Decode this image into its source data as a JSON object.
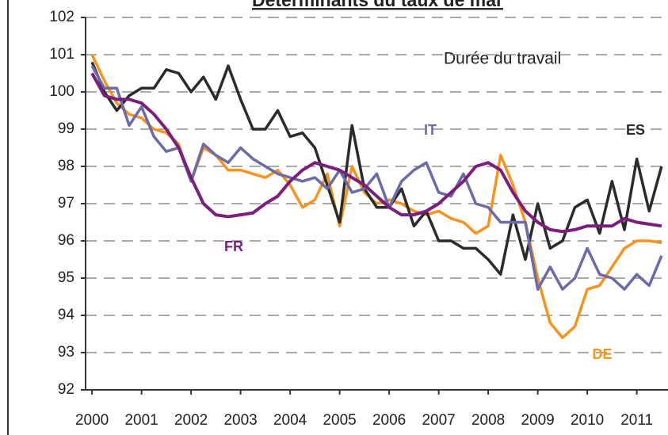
{
  "chart_data": {
    "type": "line",
    "title": "Déterminants du taux de mar",
    "annotations": [
      "Durée du travail"
    ],
    "x": [
      2000,
      2000.25,
      2000.5,
      2000.75,
      2001,
      2001.25,
      2001.5,
      2001.75,
      2002,
      2002.25,
      2002.5,
      2002.75,
      2003,
      2003.25,
      2003.5,
      2003.75,
      2004,
      2004.25,
      2004.5,
      2004.75,
      2005,
      2005.25,
      2005.5,
      2005.75,
      2006,
      2006.25,
      2006.5,
      2006.75,
      2007,
      2007.25,
      2007.5,
      2007.75,
      2008,
      2008.25,
      2008.5,
      2008.75,
      2009,
      2009.25,
      2009.5,
      2009.75,
      2010,
      2010.25,
      2010.5,
      2010.75,
      2011,
      2011.25,
      2011.5
    ],
    "xlim": [
      1999.87,
      2011.63
    ],
    "xticks": [
      2000,
      2001,
      2002,
      2003,
      2004,
      2005,
      2006,
      2007,
      2008,
      2009,
      2010,
      2011
    ],
    "ylim": [
      92,
      102
    ],
    "yticks": [
      92,
      93,
      94,
      95,
      96,
      97,
      98,
      99,
      100,
      101,
      102
    ],
    "grid": true,
    "series": [
      {
        "name": "DE",
        "color": "#f7941d",
        "values": [
          101.0,
          100.3,
          99.7,
          99.4,
          99.3,
          99.0,
          98.9,
          98.6,
          97.6,
          98.5,
          98.3,
          97.9,
          97.9,
          97.8,
          97.7,
          97.9,
          97.5,
          96.9,
          97.1,
          97.8,
          96.4,
          98.0,
          97.3,
          97.0,
          97.1,
          97.0,
          96.8,
          96.7,
          96.8,
          96.6,
          96.5,
          96.2,
          96.4,
          98.3,
          97.5,
          96.5,
          95.0,
          93.8,
          93.4,
          93.7,
          94.7,
          94.8,
          95.3,
          95.8,
          96.0,
          96.0,
          95.95
        ]
      },
      {
        "name": "ES",
        "color": "#2b2b2b",
        "values": [
          100.8,
          100.0,
          99.5,
          99.9,
          100.1,
          100.1,
          100.6,
          100.5,
          100.0,
          100.4,
          99.8,
          100.7,
          99.8,
          99.0,
          99.0,
          99.5,
          98.8,
          98.9,
          98.5,
          97.5,
          96.5,
          99.1,
          97.4,
          96.9,
          96.9,
          97.4,
          96.4,
          96.8,
          96.0,
          96.0,
          95.8,
          95.8,
          95.5,
          95.1,
          96.7,
          95.5,
          97.0,
          95.8,
          96.0,
          96.9,
          97.1,
          96.2,
          97.6,
          96.3,
          98.2,
          96.8,
          98.0
        ]
      },
      {
        "name": "IT",
        "color": "#6b6ba8",
        "values": [
          100.7,
          100.1,
          100.1,
          99.1,
          99.6,
          98.8,
          98.4,
          98.5,
          97.6,
          98.6,
          98.3,
          98.1,
          98.5,
          98.2,
          98.0,
          97.8,
          97.7,
          97.6,
          97.7,
          97.4,
          97.9,
          97.3,
          97.4,
          97.8,
          96.9,
          97.6,
          97.9,
          98.1,
          97.3,
          97.2,
          97.8,
          97.0,
          96.9,
          96.5,
          96.5,
          96.5,
          94.7,
          95.3,
          94.7,
          95.0,
          95.8,
          95.1,
          95.0,
          94.7,
          95.1,
          94.8,
          95.6
        ]
      },
      {
        "name": "FR",
        "color": "#7b1f7e",
        "values": [
          100.5,
          99.9,
          99.8,
          99.8,
          99.7,
          99.4,
          99.0,
          98.5,
          97.7,
          97.0,
          96.7,
          96.65,
          96.7,
          96.75,
          97.0,
          97.2,
          97.6,
          97.9,
          98.1,
          98.0,
          97.9,
          97.7,
          97.5,
          97.2,
          96.9,
          96.7,
          96.7,
          96.8,
          97.0,
          97.3,
          97.6,
          98.0,
          98.1,
          97.9,
          97.3,
          96.8,
          96.5,
          96.3,
          96.25,
          96.3,
          96.4,
          96.4,
          96.4,
          96.6,
          96.5,
          96.45,
          96.4
        ]
      }
    ]
  }
}
